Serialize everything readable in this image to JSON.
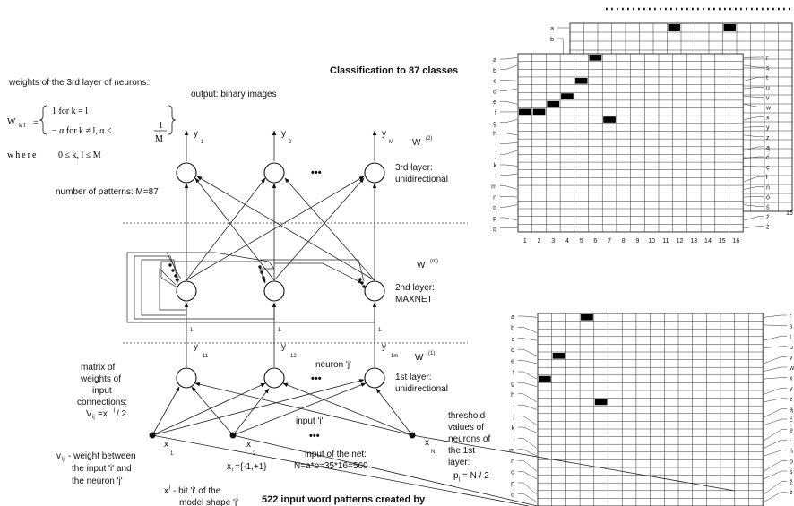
{
  "left_texts": {
    "weights_title": "weights of the 3rd layer of neurons:",
    "output_title": "output: binary images",
    "formula_line1": "1 for k = l",
    "formula_line2": "− α for k ≠ l, α <",
    "formula_frac_num": "1",
    "formula_frac_den": "M",
    "formula_lhs": "W",
    "formula_lhs_sub": "k l",
    "formula_where": "where",
    "formula_range": "0 ≤ k, l ≤ M",
    "patterns": "number of patterns: M=87",
    "matrix_l1": "matrix of",
    "matrix_l2": "weights of",
    "matrix_l3": "input",
    "matrix_l4": "connections:",
    "matrix_l5": "V",
    "matrix_l5b": "=x",
    "matrix_l5c": "/ 2",
    "matrix_l5_sub": "ij",
    "matrix_l5_sup": "j",
    "vij_l1": "v",
    "vij_sub": "ij",
    "vij_l1b": "- weight between",
    "vij_l2": "the input 'i' and",
    "vij_l3": "the neuron 'j'",
    "xi_range": "x",
    "xi_range_sub": "i",
    "xi_range_b": "={-1,+1}",
    "bit_l1": "x",
    "bit_l1_sup": "j",
    "bit_l1b": "- bit 'i' of the",
    "bit_l2": "model shape 'j'",
    "bottom_title": "522 input word patterns created by"
  },
  "network": {
    "classification_title": "Classification to 87 classes",
    "layer3_l1": "3rd layer:",
    "layer3_l2": "unidirectional",
    "layer2_l1": "2nd layer:",
    "layer2_l2": "MAXNET",
    "layer1_l1": "1st layer:",
    "layer1_l2": "unidirectional",
    "w2": "W",
    "w2_sup": "(2)",
    "wm": "W",
    "wm_sup": "(m)",
    "w1": "W",
    "w1_sup": "(1)",
    "y1": "y",
    "y1_sub": "1",
    "y2": "y",
    "y2_sub": "2",
    "yM": "y",
    "yM_sub": "M",
    "y11": "y",
    "y11_sub": "11",
    "y12": "y",
    "y12_sub": "12",
    "y1m": "y",
    "y1m_sub": "1m",
    "neuron_j": "neuron 'j'",
    "input_i": "input 'i'",
    "ellipsis": "•••",
    "one_label": "1",
    "x1": "x",
    "x1_sub": "1",
    "x2": "x",
    "x2_sub": "2",
    "xN": "x",
    "xN_sub": "N",
    "net_input_l1": "input of the net:",
    "net_input_l2": "N=a*b=35*16=560",
    "threshold_l1": "threshold",
    "threshold_l2": "values of",
    "threshold_l3": "neurons of",
    "threshold_l4": "the 1st",
    "threshold_l5": "layer:",
    "threshold_l6": "p",
    "threshold_l6_sub": "j",
    "threshold_l6b": "= N / 2"
  },
  "grids": {
    "row_letters": [
      "a",
      "b",
      "c",
      "d",
      "e",
      "f",
      "g",
      "h",
      "i",
      "j",
      "k",
      "l",
      "m",
      "n",
      "o",
      "p",
      "q"
    ],
    "right_letters_top": [
      "r",
      "s",
      "t",
      "u",
      "v",
      "w",
      "x",
      "y",
      "z",
      "ą",
      "ć",
      "ę",
      "ł",
      "ń",
      "ó",
      "ś",
      "ź",
      "ż"
    ],
    "right_letters_bottom": [
      "r",
      "s",
      "t",
      "u",
      "v",
      "w",
      "x",
      "y",
      "z",
      "ą",
      "ć",
      "ę",
      "ł",
      "ń",
      "ó",
      "ś",
      "ź",
      "ż"
    ],
    "col_numbers": [
      "1",
      "2",
      "3",
      "4",
      "5",
      "6",
      "7",
      "8",
      "9",
      "10",
      "11",
      "12",
      "13",
      "14",
      "15",
      "16"
    ],
    "back_col_label": "16",
    "top_filled": [
      [
        5,
        0
      ],
      [
        4,
        3
      ],
      [
        3,
        5
      ],
      [
        2,
        6
      ],
      [
        1,
        7
      ],
      [
        0,
        7
      ],
      [
        6,
        8
      ]
    ],
    "back_filled": [
      [
        7,
        0
      ],
      [
        11,
        0
      ]
    ],
    "bottom_filled": [
      [
        3,
        0
      ],
      [
        1,
        5
      ],
      [
        0,
        8
      ],
      [
        4,
        11
      ]
    ]
  }
}
